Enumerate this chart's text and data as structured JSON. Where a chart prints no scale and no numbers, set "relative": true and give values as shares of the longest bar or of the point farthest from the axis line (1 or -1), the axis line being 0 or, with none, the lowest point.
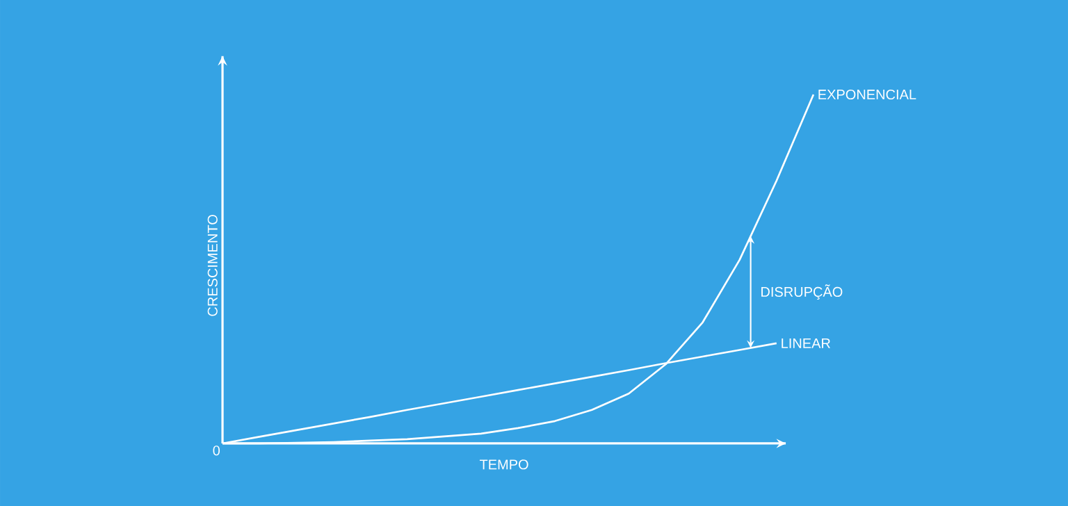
{
  "chart_data": {
    "type": "line",
    "relative": true,
    "xlabel": "TEMPO",
    "ylabel": "CRESCIMENTO",
    "categories": [
      null,
      null,
      null,
      null,
      null,
      null,
      null,
      null,
      null,
      null,
      null,
      null,
      null,
      null,
      null,
      null,
      null
    ],
    "series": [
      {
        "name": "EXPONENCIAL",
        "color": "#ffffff",
        "values": [
          0,
          0,
          0.002,
          0.004,
          0.008,
          0.012,
          0.02,
          0.028,
          0.044,
          0.064,
          0.096,
          0.143,
          0.227,
          0.347,
          0.526,
          0.753,
          1
        ]
      },
      {
        "name": "LINEAR",
        "color": "#ffffff",
        "values": [
          0,
          0.019,
          0.038,
          0.057,
          0.076,
          0.096,
          0.115,
          0.134,
          0.153,
          0.172,
          0.191,
          0.21,
          0.23,
          0.249,
          0.268,
          0.287,
          null
        ]
      }
    ],
    "annotations": [
      "0",
      "DISRUPÇÃO"
    ],
    "marker": "none",
    "line_style": "solid"
  }
}
